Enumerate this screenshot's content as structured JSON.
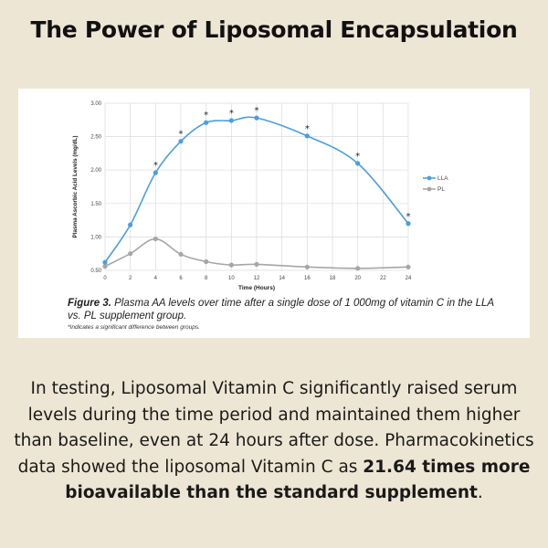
{
  "title": "The Power of Liposomal Encapsulation",
  "chart_data": {
    "type": "line",
    "xlabel": "Time (Hours)",
    "ylabel": "Plasma Ascorbic Acid Levels (mg/dL)",
    "xlim": [
      0,
      24
    ],
    "ylim": [
      0.5,
      3.0
    ],
    "xticks": [
      "0",
      "2",
      "4",
      "6",
      "8",
      "10",
      "12",
      "14",
      "16",
      "18",
      "20",
      "22",
      "24"
    ],
    "yticks": [
      "0.50",
      "1.00",
      "1.50",
      "2.00",
      "2.50",
      "3.00"
    ],
    "grid": true,
    "legend": "right",
    "x": [
      0,
      2,
      4,
      6,
      8,
      10,
      12,
      16,
      20,
      24
    ],
    "series": [
      {
        "name": "LLA",
        "color": "#4a9ee0",
        "values": [
          0.62,
          1.18,
          1.96,
          2.43,
          2.71,
          2.74,
          2.78,
          2.51,
          2.1,
          1.2
        ],
        "significant": [
          false,
          false,
          true,
          true,
          true,
          true,
          true,
          true,
          true,
          true
        ]
      },
      {
        "name": "PL",
        "color": "#a6a6a6",
        "values": [
          0.56,
          0.75,
          0.97,
          0.74,
          0.63,
          0.58,
          0.59,
          0.55,
          0.53,
          0.55
        ]
      }
    ],
    "significance_marker": "*"
  },
  "caption": {
    "label": "Figure 3.",
    "text": " Plasma AA levels over time after a single dose of 1 000mg of vitamin C in the LLA vs. PL supplement group.",
    "note": "*Indicates a significant difference between groups."
  },
  "body": {
    "text": "In testing, Liposomal Vitamin C significantly raised serum levels during the time period and maintained them higher than baseline, even at 24 hours after dose. Pharmacokinetics data showed the liposomal Vitamin C as ",
    "bold": "21.64 times more bioavailable than the standard supplement",
    "end": "."
  }
}
